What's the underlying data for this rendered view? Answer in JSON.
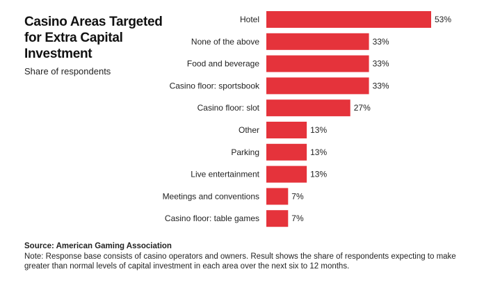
{
  "chart_data": {
    "type": "bar",
    "orientation": "horizontal",
    "title": "Casino Areas Targeted for Extra Capital Investment",
    "subtitle": "Share of respondents",
    "categories": [
      "Hotel",
      "None of the above",
      "Food and beverage",
      "Casino floor: sportsbook",
      "Casino floor: slot",
      "Other",
      "Parking",
      "Live entertainment",
      "Meetings and conventions",
      "Casino floor: table games"
    ],
    "values": [
      53,
      33,
      33,
      33,
      27,
      13,
      13,
      13,
      7,
      7
    ],
    "value_labels": [
      "53%",
      "33%",
      "33%",
      "33%",
      "27%",
      "13%",
      "13%",
      "13%",
      "7%",
      "7%"
    ],
    "xlim": [
      0,
      53
    ],
    "bar_color": "#e5333b",
    "grid": false
  },
  "footer": {
    "source": "Source: American Gaming Association",
    "note": "Note: Response base consists of casino operators and owners. Result shows the share of respondents expecting to make greater than normal levels of capital investment in each area over the next six to 12 months."
  }
}
